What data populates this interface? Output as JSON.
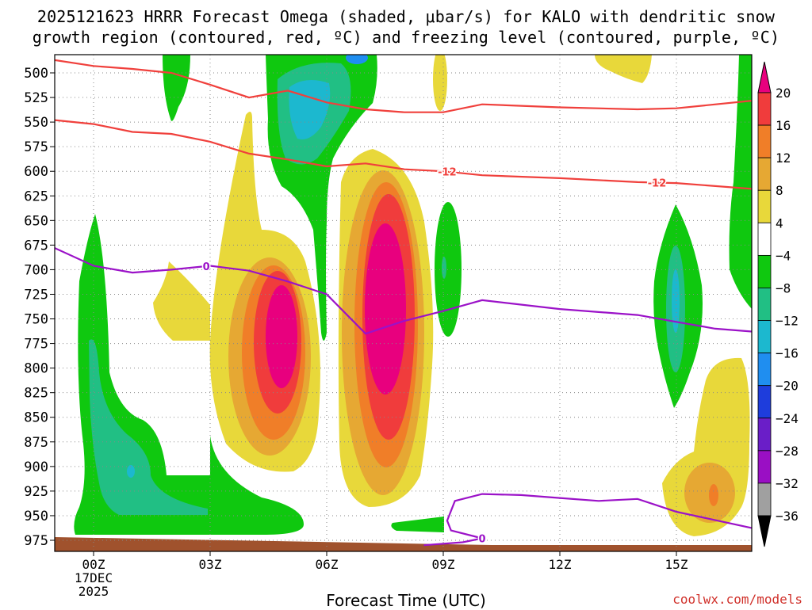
{
  "title_line1": "2025121623 HRRR Forecast Omega (shaded, μbar/s) for KALO with dendritic snow",
  "title_line2": "growth region (contoured, red, ºC) and freezing level (contoured, purple, ºC)",
  "credit": "coolwx.com/models",
  "chart_data": {
    "type": "time-height cross section (filled contour)",
    "title": "2025121623 HRRR Forecast Omega (shaded, μbar/s) for KALO with dendritic snow growth region (contoured, red, ºC) and freezing level (contoured, purple, ºC)",
    "xlabel": "Forecast Time (UTC)",
    "ylabel": "",
    "x_range_hours": [
      -1,
      17
    ],
    "y_range_mb": [
      975,
      480
    ],
    "y_axis": "pressure (mb), decreasing upward",
    "grid": true,
    "xticks": [
      {
        "hour": 0,
        "label": "00Z",
        "sublabel1": "17DEC",
        "sublabel2": "2025"
      },
      {
        "hour": 3,
        "label": "03Z"
      },
      {
        "hour": 6,
        "label": "06Z"
      },
      {
        "hour": 9,
        "label": "09Z"
      },
      {
        "hour": 12,
        "label": "12Z"
      },
      {
        "hour": 15,
        "label": "15Z"
      }
    ],
    "yticks": [
      500,
      525,
      550,
      575,
      600,
      625,
      650,
      675,
      700,
      725,
      750,
      775,
      800,
      825,
      850,
      875,
      900,
      925,
      950,
      975
    ],
    "colorbar": {
      "labels": [
        "20",
        "16",
        "12",
        "8",
        "4",
        "−4",
        "−8",
        "−12",
        "−16",
        "−20",
        "−24",
        "−28",
        "−32",
        "−36"
      ],
      "bands": [
        {
          "range": ">20",
          "color": "#e8007e"
        },
        {
          "range": "16 to 20",
          "color": "#f03c3c"
        },
        {
          "range": "12 to 16",
          "color": "#f07e28"
        },
        {
          "range": "8 to 12",
          "color": "#e6a833"
        },
        {
          "range": "4 to 8",
          "color": "#e8d83a"
        },
        {
          "range": "-4 to 4",
          "color": "#ffffff"
        },
        {
          "range": "-8 to -4",
          "color": "#0fc80f"
        },
        {
          "range": "-12 to -8",
          "color": "#21bf84"
        },
        {
          "range": "-16 to -12",
          "color": "#1cb8cf"
        },
        {
          "range": "-20 to -16",
          "color": "#1f8ef0"
        },
        {
          "range": "-24 to -20",
          "color": "#1e3ddc"
        },
        {
          "range": "-28 to -24",
          "color": "#6a1ec8"
        },
        {
          "range": "-32 to -28",
          "color": "#9a0fc4"
        },
        {
          "range": "-36 to -32",
          "color": "#a0a0a0"
        },
        {
          "range": "<-36",
          "color": "#000000"
        }
      ]
    },
    "series": [
      {
        "name": "-12C isotherm (upper)",
        "color": "#f0403c",
        "points": [
          [
            -1,
            487
          ],
          [
            0,
            493
          ],
          [
            1,
            496
          ],
          [
            2,
            500
          ],
          [
            3,
            512
          ],
          [
            4,
            525
          ],
          [
            5,
            518
          ],
          [
            6,
            530
          ],
          [
            7,
            537
          ],
          [
            8,
            540
          ],
          [
            9,
            540
          ],
          [
            10,
            532
          ],
          [
            12,
            535
          ],
          [
            14,
            537
          ],
          [
            15,
            536
          ],
          [
            17,
            528
          ]
        ]
      },
      {
        "name": "-12C isotherm (lower)",
        "color": "#f0403c",
        "label": "-12",
        "label_hours": [
          9.1,
          14.5
        ],
        "points": [
          [
            -1,
            548
          ],
          [
            0,
            552
          ],
          [
            1,
            560
          ],
          [
            2,
            562
          ],
          [
            3,
            570
          ],
          [
            4,
            582
          ],
          [
            5,
            588
          ],
          [
            6,
            595
          ],
          [
            7,
            592
          ],
          [
            8,
            598
          ],
          [
            9,
            600
          ],
          [
            10,
            604
          ],
          [
            12,
            607
          ],
          [
            14,
            611
          ],
          [
            15,
            612
          ],
          [
            17,
            618
          ]
        ]
      },
      {
        "name": "0C freezing level (upper)",
        "color": "#9b12c8",
        "label": "0",
        "label_hours": [
          2.9
        ],
        "points": [
          [
            -1,
            678
          ],
          [
            0,
            696
          ],
          [
            1,
            703
          ],
          [
            2,
            700
          ],
          [
            3,
            696
          ],
          [
            4,
            701
          ],
          [
            5,
            712
          ],
          [
            6,
            725
          ],
          [
            7,
            765
          ],
          [
            8,
            752
          ],
          [
            9,
            742
          ],
          [
            10,
            731
          ],
          [
            12,
            740
          ],
          [
            14,
            746
          ],
          [
            15,
            753
          ],
          [
            16,
            760
          ],
          [
            17,
            763
          ]
        ]
      },
      {
        "name": "0C freezing level (lower)",
        "color": "#9b12c8",
        "label": "0",
        "label_hours": [
          10
        ],
        "points": [
          [
            8.5,
            980
          ],
          [
            9.5,
            977
          ],
          [
            10,
            973
          ],
          [
            9.2,
            965
          ],
          [
            9.1,
            955
          ],
          [
            9.3,
            935
          ],
          [
            10,
            928
          ],
          [
            11,
            929
          ],
          [
            12,
            932
          ],
          [
            13,
            935
          ],
          [
            14,
            933
          ],
          [
            15,
            946
          ],
          [
            17,
            963
          ]
        ]
      }
    ],
    "shaded_features": [
      {
        "kind": "upward motion maximum (positive omega)",
        "center_hour": 7.5,
        "center_mb": 700,
        "peak": ">20"
      },
      {
        "kind": "upward motion maximum (positive omega)",
        "center_hour": 5,
        "center_mb": 740,
        "peak": ">20"
      },
      {
        "kind": "upward motion maximum (positive omega)",
        "center_hour": 16,
        "center_mb": 920,
        "peak": "12 to 16"
      },
      {
        "kind": "subsidence (negative omega)",
        "center_hour": 5.5,
        "center_mb": 530,
        "peak": "-16 to -20"
      },
      {
        "kind": "subsidence (negative omega)",
        "center_hour": 15,
        "center_mb": 690,
        "peak": "-12 to -16"
      },
      {
        "kind": "subsidence (negative omega)",
        "center_hour": 0.5,
        "center_mb": 850,
        "peak": "-12 to -16"
      }
    ]
  }
}
